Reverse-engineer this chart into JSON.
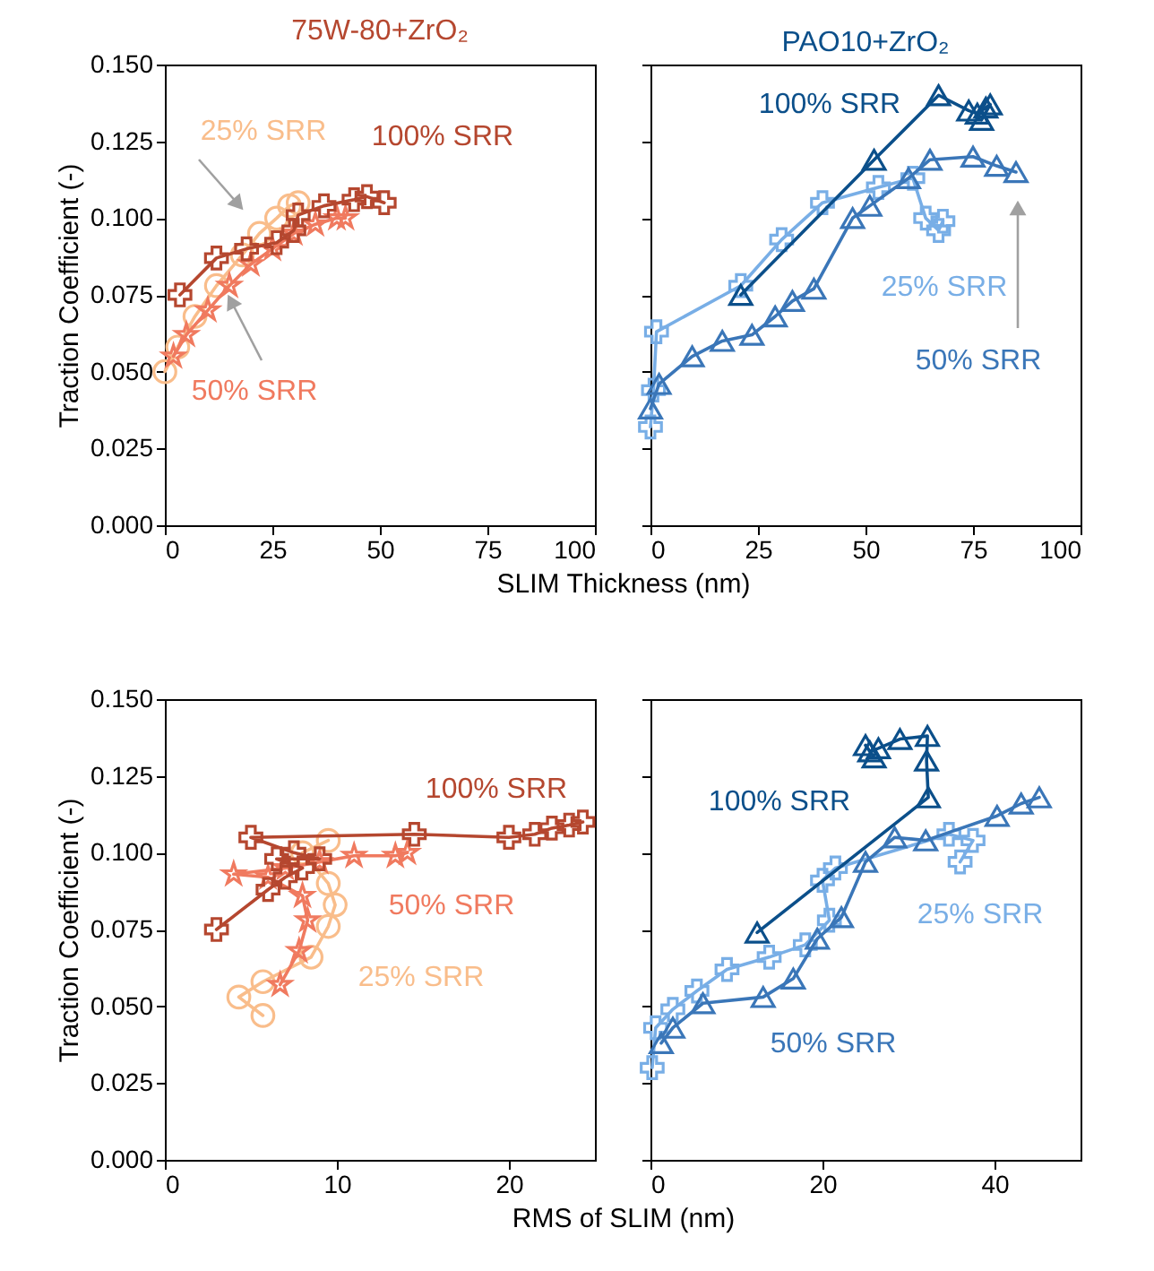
{
  "chart_data": [
    {
      "type": "line",
      "title": "75W-80+ZrO₂",
      "xlabel": "SLIM Thickness (nm)",
      "ylabel": "Traction Coefficient (-)",
      "xlim": [
        0,
        100
      ],
      "xticks": [
        0,
        25,
        50,
        75,
        100
      ],
      "ylim": [
        0,
        0.15
      ],
      "yticks": [
        {
          "value": 0,
          "label": "0.000"
        },
        {
          "value": 0.025,
          "label": "0.025"
        },
        {
          "value": 0.05,
          "label": "0.050"
        },
        {
          "value": 0.075,
          "label": "0.075"
        },
        {
          "value": 0.1,
          "label": "0.100"
        },
        {
          "value": 0.125,
          "label": "0.125"
        },
        {
          "value": 0.15,
          "label": "0.150"
        }
      ],
      "series": [
        {
          "name": "25% SRR",
          "color": "#f9bd8b",
          "marker": "circle",
          "x": [
            0,
            3,
            7,
            12,
            18,
            22,
            26,
            29,
            31
          ],
          "values": [
            0.05,
            0.058,
            0.068,
            0.078,
            0.088,
            0.095,
            0.1,
            0.104,
            0.105
          ]
        },
        {
          "name": "50% SRR",
          "color": "#f07a5f",
          "marker": "star",
          "x": [
            2,
            5,
            10,
            15,
            20,
            25,
            30,
            35,
            40,
            42
          ],
          "values": [
            0.055,
            0.062,
            0.07,
            0.078,
            0.085,
            0.09,
            0.095,
            0.098,
            0.1,
            0.1
          ]
        },
        {
          "name": "100% SRR",
          "color": "#b5472f",
          "marker": "cross",
          "x": [
            3.5,
            12,
            19,
            26,
            30,
            31,
            37,
            44,
            47,
            51
          ],
          "values": [
            0.075,
            0.087,
            0.09,
            0.092,
            0.096,
            0.101,
            0.104,
            0.106,
            0.107,
            0.105
          ]
        }
      ]
    },
    {
      "type": "line",
      "title": "PAO10+ZrO₂",
      "xlim": [
        0,
        100
      ],
      "xticks": [
        0,
        25,
        50,
        75,
        100
      ],
      "ylim": [
        0,
        0.15
      ],
      "yticks": [
        0,
        0.025,
        0.05,
        0.075,
        0.1,
        0.125,
        0.15
      ],
      "tick_labels": "x",
      "series": [
        {
          "name": "25% SRR",
          "color": "#78aee6",
          "marker": "cross",
          "x": [
            0,
            0.7,
            1.4,
            21,
            30.5,
            40,
            53,
            61,
            64,
            67,
            68
          ],
          "values": [
            0.032,
            0.044,
            0.063,
            0.078,
            0.093,
            0.105,
            0.11,
            0.113,
            0.1,
            0.096,
            0.099
          ]
        },
        {
          "name": "50% SRR",
          "color": "#3a76b8",
          "marker": "triangle",
          "x": [
            0,
            2,
            9.7,
            16.7,
            23.6,
            29,
            33,
            38,
            47,
            51,
            60,
            65,
            75,
            80.5,
            85
          ],
          "values": [
            0.038,
            0.046,
            0.055,
            0.06,
            0.062,
            0.068,
            0.073,
            0.077,
            0.1,
            0.104,
            0.113,
            0.119,
            0.12,
            0.117,
            0.115
          ]
        },
        {
          "name": "100% SRR",
          "color": "#0b4f8a",
          "marker": "triangle",
          "x": [
            21,
            52,
            67,
            74,
            76,
            78,
            79,
            77
          ],
          "values": [
            0.075,
            0.119,
            0.14,
            0.135,
            0.134,
            0.136,
            0.137,
            0.132
          ]
        }
      ]
    },
    {
      "type": "line",
      "xlabel": "RMS of SLIM (nm)",
      "ylabel": "Traction Coefficient (-)",
      "xlim": [
        0,
        25
      ],
      "xticks": [
        0,
        10,
        20
      ],
      "ylim": [
        0,
        0.15
      ],
      "yticks": [
        {
          "value": 0,
          "label": "0.000"
        },
        {
          "value": 0.025,
          "label": "0.025"
        },
        {
          "value": 0.05,
          "label": "0.050"
        },
        {
          "value": 0.075,
          "label": "0.075"
        },
        {
          "value": 0.1,
          "label": "0.100"
        },
        {
          "value": 0.125,
          "label": "0.125"
        },
        {
          "value": 0.15,
          "label": "0.150"
        }
      ],
      "series": [
        {
          "name": "25% SRR",
          "color": "#f9bd8b",
          "marker": "circle",
          "x": [
            5.7,
            4.3,
            5.7,
            8.5,
            9.5,
            9.9,
            9.5,
            8,
            9.5
          ],
          "values": [
            0.047,
            0.053,
            0.058,
            0.066,
            0.076,
            0.083,
            0.09,
            0.1,
            0.104
          ]
        },
        {
          "name": "50% SRR",
          "color": "#f07a5f",
          "marker": "star",
          "x": [
            6.7,
            7.8,
            8.3,
            8,
            6,
            4,
            7,
            9,
            11,
            13.4,
            14.1
          ],
          "values": [
            0.057,
            0.068,
            0.078,
            0.086,
            0.092,
            0.093,
            0.095,
            0.097,
            0.099,
            0.099,
            0.1
          ]
        },
        {
          "name": "100% SRR",
          "color": "#b5472f",
          "marker": "cross",
          "x": [
            3,
            6,
            7,
            8,
            6.5,
            9,
            7.5,
            5,
            14.5,
            20,
            21.5,
            22.5,
            23.5,
            24.3
          ],
          "values": [
            0.075,
            0.088,
            0.092,
            0.095,
            0.098,
            0.098,
            0.1,
            0.105,
            0.106,
            0.105,
            0.106,
            0.108,
            0.109,
            0.11
          ]
        }
      ]
    },
    {
      "type": "line",
      "xlim": [
        0,
        50
      ],
      "xticks": [
        0,
        20,
        40
      ],
      "ylim": [
        0,
        0.15
      ],
      "yticks": [
        0,
        0.025,
        0.05,
        0.075,
        0.1,
        0.125,
        0.15
      ],
      "tick_labels": "x",
      "series": [
        {
          "name": "25% SRR",
          "color": "#78aee6",
          "marker": "cross",
          "x": [
            0.2,
            0.6,
            2.6,
            5.4,
            8.9,
            13.8,
            18,
            20.8,
            20,
            21.5,
            34.7,
            37.5,
            36
          ],
          "values": [
            0.03,
            0.043,
            0.049,
            0.055,
            0.062,
            0.066,
            0.07,
            0.078,
            0.091,
            0.095,
            0.106,
            0.104,
            0.097
          ]
        },
        {
          "name": "50% SRR",
          "color": "#3a76b8",
          "marker": "triangle",
          "x": [
            1.25,
            2.6,
            6.1,
            13.1,
            16.6,
            19.4,
            22.2,
            25,
            28.4,
            32,
            40.3,
            43.1,
            45.2
          ],
          "values": [
            0.038,
            0.043,
            0.051,
            0.053,
            0.059,
            0.072,
            0.079,
            0.097,
            0.105,
            0.104,
            0.112,
            0.116,
            0.118
          ]
        },
        {
          "name": "100% SRR",
          "color": "#0b4f8a",
          "marker": "triangle",
          "x": [
            12.4,
            32.3,
            32.1,
            32.2,
            29,
            26.5,
            25.5,
            25,
            26
          ],
          "values": [
            0.074,
            0.118,
            0.13,
            0.138,
            0.137,
            0.134,
            0.133,
            0.135,
            0.131
          ]
        }
      ]
    }
  ]
}
